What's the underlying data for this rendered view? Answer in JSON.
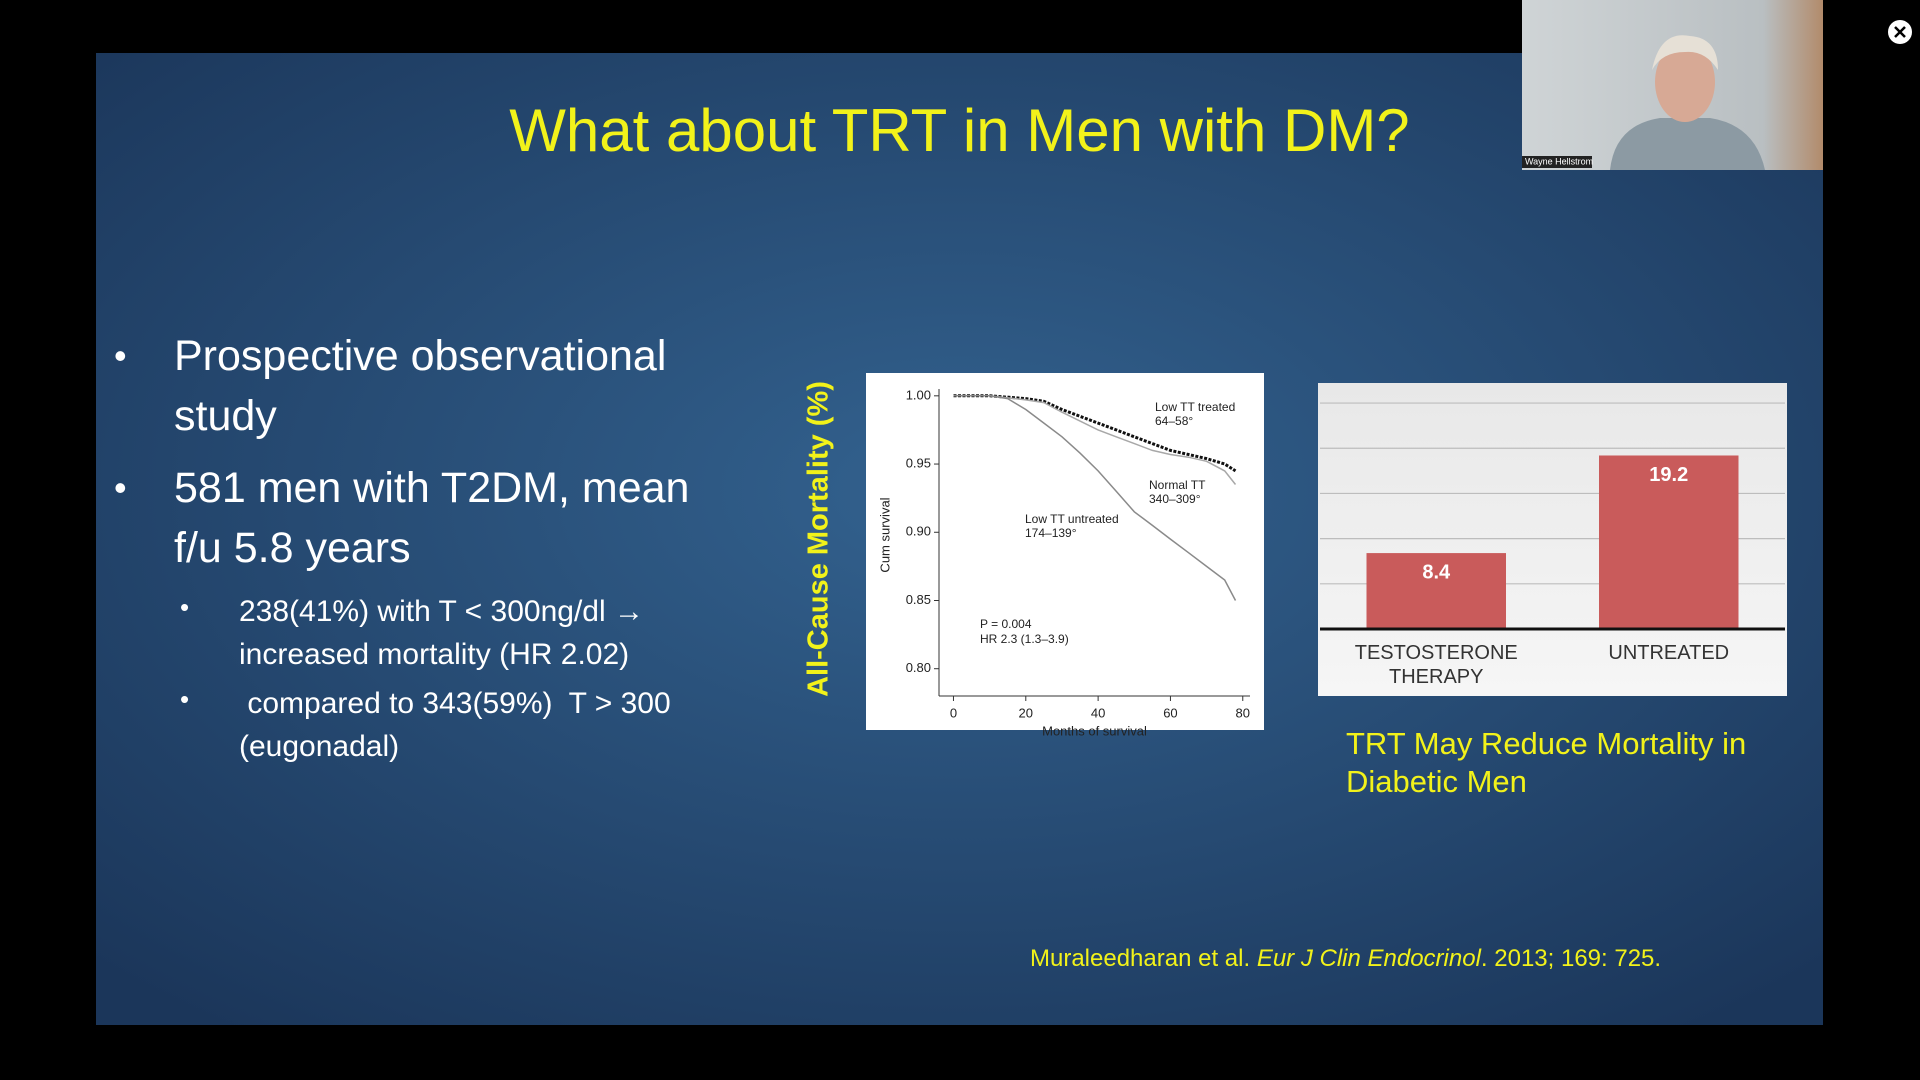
{
  "video": {
    "participant_name": "Wayne Hellstrom"
  },
  "slide": {
    "title": "What about TRT in Men with DM?",
    "bullets": [
      {
        "text": "Prospective observational study"
      },
      {
        "text": "581 men with T2DM, mean f/u 5.8 years",
        "sub_bullets": [
          "238(41%) with T < 300ng/dl → increased mortality (HR 2.02)",
          " compared to 343(59%)  T > 300 (eugonadal)"
        ]
      }
    ],
    "side_label": "All-Cause Mortality (%)",
    "caption": "TRT May Reduce Mortality in Diabetic Men",
    "citation": {
      "authors": "Muraleedharan et al.",
      "journal": "Eur J Clin Endocrinol",
      "details": ". 2013; 169: 725."
    }
  },
  "chart_data": [
    {
      "type": "line",
      "xlabel": "Months of survival",
      "ylabel": "Cum survival",
      "xlim": [
        -4,
        82
      ],
      "ylim": [
        0.78,
        1.005
      ],
      "xticks": [
        0,
        20,
        40,
        60,
        80
      ],
      "yticks": [
        {
          "value": 1,
          "label": "1.00"
        },
        0.95,
        {
          "value": 0.9,
          "label": "0.90"
        },
        0.85,
        {
          "value": 0.8,
          "label": "0.80"
        }
      ],
      "annotations": [
        "P = 0.004",
        "HR 2.3 (1.3–3.9)"
      ],
      "series": [
        {
          "name": "Low TT treated",
          "note": "64–58°",
          "color": "#111111",
          "x": [
            0,
            10,
            20,
            25,
            30,
            35,
            40,
            45,
            50,
            55,
            60,
            65,
            70,
            75,
            78
          ],
          "values": [
            1,
            1,
            0.998,
            0.996,
            0.99,
            0.985,
            0.98,
            0.975,
            0.97,
            0.965,
            0.96,
            0.957,
            0.954,
            0.95,
            0.945
          ]
        },
        {
          "name": "Normal TT",
          "note": "340–309°",
          "color": "#a8a8a8",
          "x": [
            0,
            10,
            20,
            25,
            30,
            40,
            45,
            50,
            55,
            60,
            65,
            70,
            75,
            78
          ],
          "values": [
            1,
            1,
            0.997,
            0.995,
            0.988,
            0.975,
            0.97,
            0.965,
            0.96,
            0.957,
            0.955,
            0.952,
            0.945,
            0.935
          ]
        },
        {
          "name": "Low TT untreated",
          "note": "174–139°",
          "color": "#8a8a8a",
          "x": [
            0,
            10,
            15,
            20,
            25,
            30,
            35,
            40,
            45,
            50,
            55,
            60,
            65,
            70,
            75,
            78
          ],
          "values": [
            1,
            1,
            0.998,
            0.99,
            0.98,
            0.97,
            0.958,
            0.945,
            0.93,
            0.915,
            0.905,
            0.895,
            0.885,
            0.875,
            0.865,
            0.85
          ]
        }
      ]
    },
    {
      "type": "bar",
      "categories": [
        "TESTOSTERONE THERAPY",
        "UNTREATED"
      ],
      "values": [
        8.4,
        19.2
      ],
      "color": "#c95b5b",
      "ylim": [
        0,
        27
      ],
      "ygrid": [
        5,
        10,
        15,
        20,
        25
      ]
    }
  ]
}
